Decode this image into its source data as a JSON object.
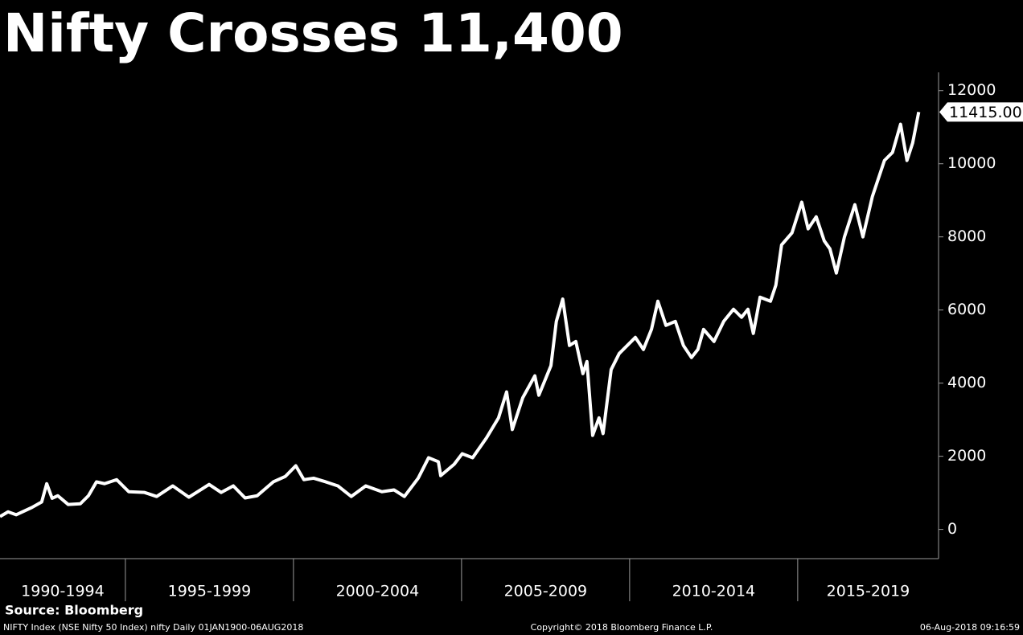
{
  "chart_data": {
    "type": "line",
    "title": "Nifty Crosses 11,400",
    "source": "Source: Bloomberg",
    "footer_left": "NIFTY Index (NSE Nifty 50 Index) nifty  Daily 01JAN1900-06AUG2018",
    "footer_center": "Copyright© 2018 Bloomberg Finance L.P.",
    "footer_right": "06-Aug-2018 09:16:59",
    "color": "#ffffff",
    "xlim": [
      1991.27,
      2019.19
    ],
    "ylim": [
      -800,
      12500
    ],
    "yticks": [
      0,
      2000,
      4000,
      6000,
      8000,
      10000,
      12000
    ],
    "xticks": [
      1995,
      2000,
      2005,
      2010,
      2015
    ],
    "periods": [
      {
        "label": "1990-1994",
        "start": 1990,
        "end": 1995
      },
      {
        "label": "1995-1999",
        "start": 1995,
        "end": 2000
      },
      {
        "label": "2000-2004",
        "start": 2000,
        "end": 2005
      },
      {
        "label": "2005-2009",
        "start": 2005,
        "end": 2010
      },
      {
        "label": "2010-2014",
        "start": 2010,
        "end": 2015
      },
      {
        "label": "2015-2019",
        "start": 2015,
        "end": 2020
      }
    ],
    "x": [
      1991.27,
      1991.51,
      1991.75,
      1992.22,
      1992.51,
      1992.66,
      1992.82,
      1992.99,
      1993.3,
      1993.66,
      1993.9,
      1994.14,
      1994.38,
      1994.74,
      1995.1,
      1995.57,
      1995.93,
      1996.41,
      1996.89,
      1997.49,
      1997.85,
      1998.21,
      1998.56,
      1998.92,
      1999.4,
      1999.76,
      2000.07,
      2000.31,
      2000.6,
      2000.96,
      2001.32,
      2001.72,
      2002.15,
      2002.63,
      2002.99,
      2003.3,
      2003.71,
      2004.02,
      2004.31,
      2004.38,
      2004.78,
      2005.02,
      2005.33,
      2005.74,
      2006.1,
      2006.34,
      2006.51,
      2006.82,
      2007.18,
      2007.3,
      2007.66,
      2007.82,
      2008.01,
      2008.21,
      2008.4,
      2008.61,
      2008.73,
      2008.9,
      2009.09,
      2009.21,
      2009.45,
      2009.69,
      2009.93,
      2010.17,
      2010.41,
      2010.65,
      2010.84,
      2011.08,
      2011.36,
      2011.6,
      2011.84,
      2012.03,
      2012.2,
      2012.51,
      2012.8,
      2013.09,
      2013.33,
      2013.52,
      2013.68,
      2013.88,
      2014.19,
      2014.35,
      2014.52,
      2014.83,
      2015.12,
      2015.31,
      2015.55,
      2015.79,
      2015.96,
      2016.15,
      2016.39,
      2016.7,
      2016.94,
      2017.22,
      2017.58,
      2017.82,
      2018.06,
      2018.25,
      2018.42,
      2018.6
    ],
    "values": [
      350,
      480,
      400,
      600,
      750,
      1250,
      850,
      920,
      680,
      700,
      920,
      1300,
      1250,
      1360,
      1030,
      1010,
      900,
      1190,
      880,
      1230,
      1010,
      1190,
      860,
      920,
      1300,
      1450,
      1740,
      1360,
      1400,
      1300,
      1190,
      900,
      1190,
      1030,
      1080,
      900,
      1400,
      1960,
      1850,
      1470,
      1780,
      2070,
      1960,
      2500,
      3050,
      3760,
      2730,
      3600,
      4200,
      3670,
      4480,
      5690,
      6300,
      5030,
      5140,
      4260,
      4590,
      2570,
      3050,
      2620,
      4370,
      4810,
      5030,
      5250,
      4920,
      5470,
      6240,
      5580,
      5690,
      5030,
      4700,
      4920,
      5470,
      5140,
      5690,
      6020,
      5800,
      6020,
      5360,
      6350,
      6240,
      6680,
      7780,
      8110,
      8950,
      8220,
      8550,
      7890,
      7670,
      7010,
      8000,
      8880,
      8000,
      9100,
      10090,
      10310,
      11080,
      10090,
      10570,
      11415
    ],
    "annotations": [
      {
        "x": 2018.6,
        "y": 11415,
        "label": "11415.00"
      }
    ]
  }
}
